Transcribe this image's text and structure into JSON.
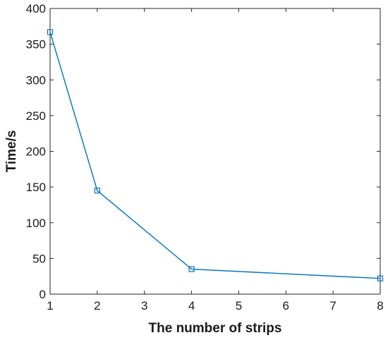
{
  "chart_data": {
    "type": "line",
    "title": "",
    "xlabel": "The number of strips",
    "ylabel": "Time/s",
    "xlim": [
      1,
      8
    ],
    "ylim": [
      0,
      400
    ],
    "xticks": [
      1,
      2,
      3,
      4,
      5,
      6,
      7,
      8
    ],
    "yticks": [
      0,
      50,
      100,
      150,
      200,
      250,
      300,
      350,
      400
    ],
    "grid": false,
    "series": [
      {
        "color": "#0072BD",
        "marker": "square",
        "x": [
          1,
          2,
          4,
          8
        ],
        "y": [
          367,
          145,
          35,
          22
        ]
      }
    ]
  }
}
